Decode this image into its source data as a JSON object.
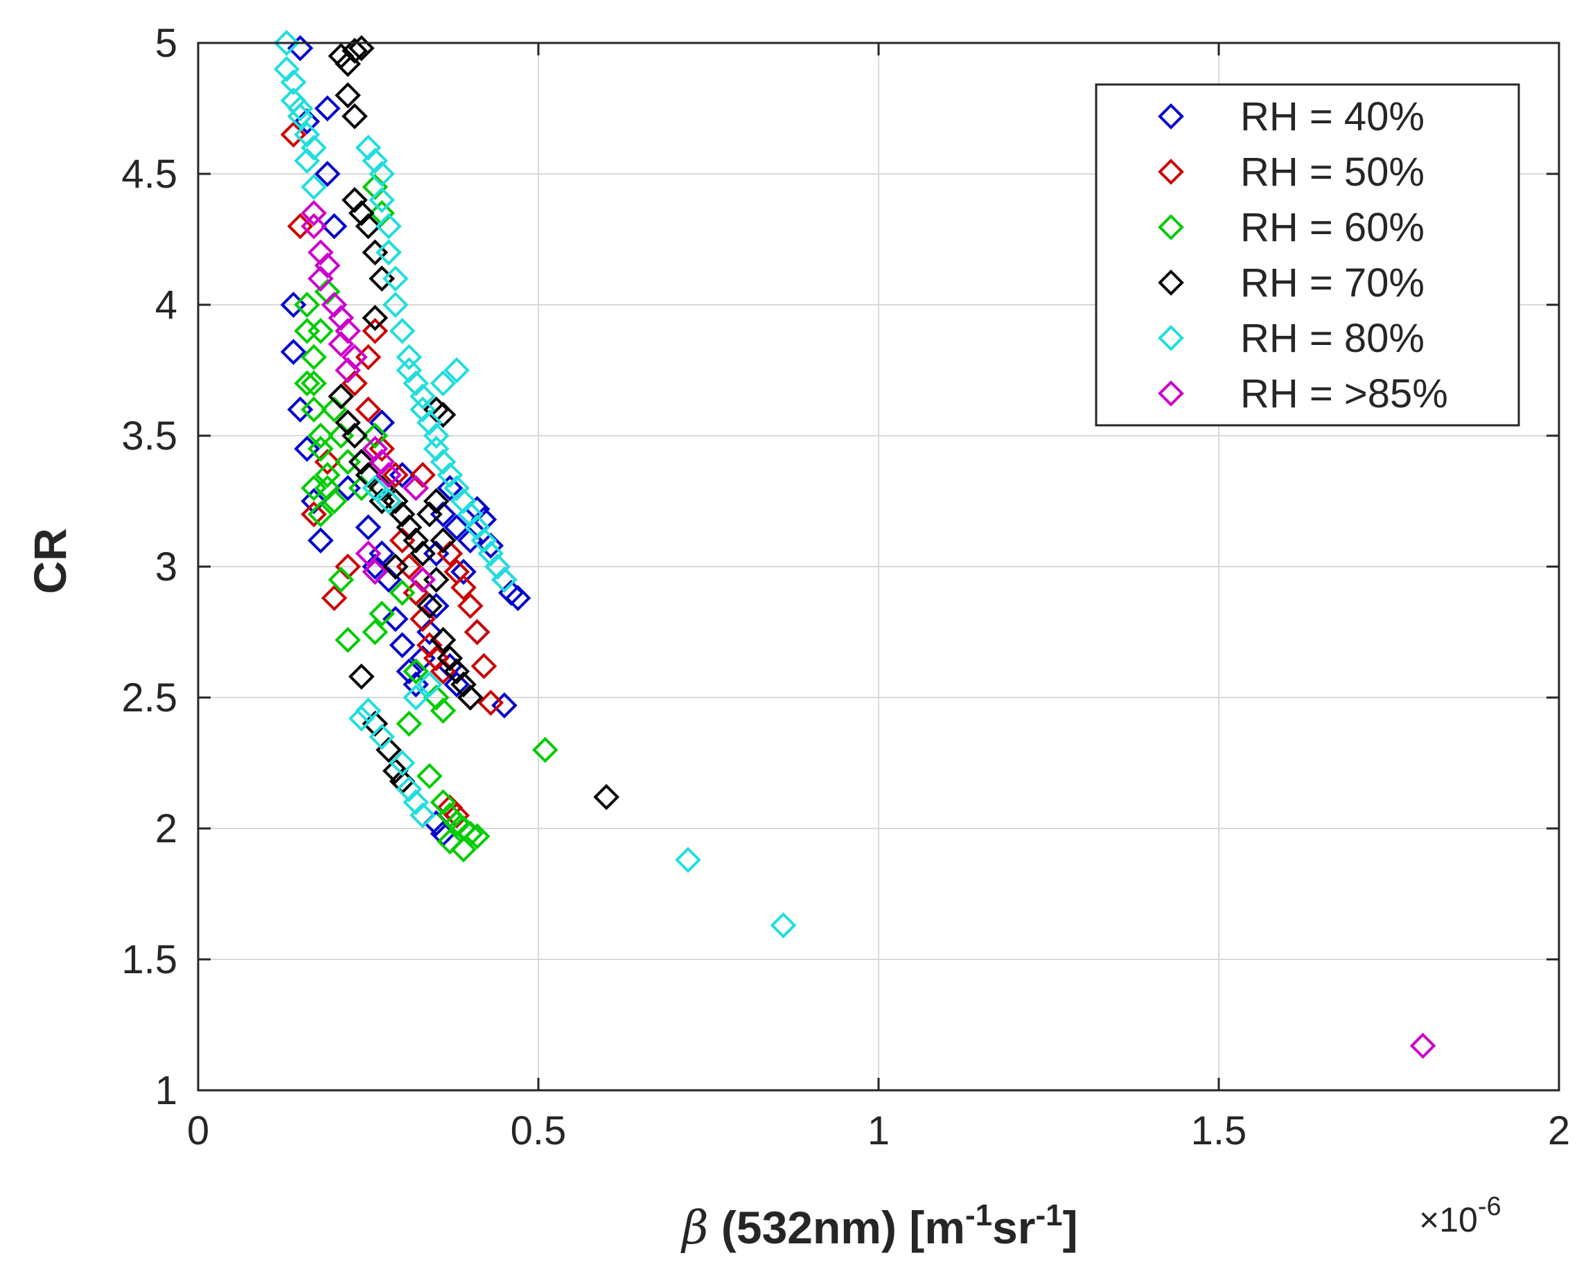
{
  "chart_data": {
    "type": "scatter",
    "title": "",
    "xlabel_symbol": "β",
    "xlabel_text": " (532nm) [m",
    "xlabel_sup1": "-1",
    "xlabel_mid": "sr",
    "xlabel_sup2": "-1",
    "xlabel_end": "]",
    "ylabel": "CR",
    "x_exponent_base": "×10",
    "x_exponent_power": "-6",
    "xlim": [
      0,
      2
    ],
    "ylim": [
      1,
      5
    ],
    "grid": true,
    "legend_position": "top-right",
    "x_ticks": [
      0,
      0.5,
      1,
      1.5,
      2
    ],
    "x_tick_labels": [
      "0",
      "0.5",
      "1",
      "1.5",
      "2"
    ],
    "y_ticks": [
      1,
      1.5,
      2,
      2.5,
      3,
      3.5,
      4,
      4.5,
      5
    ],
    "y_tick_labels": [
      "1",
      "1.5",
      "2",
      "2.5",
      "3",
      "3.5",
      "4",
      "4.5",
      "5"
    ],
    "marker": "diamond-open",
    "series": [
      {
        "name": "RH = 40%",
        "color": "#0000cc",
        "points": [
          [
            0.15,
            4.98
          ],
          [
            0.16,
            4.7
          ],
          [
            0.19,
            4.75
          ],
          [
            0.19,
            4.5
          ],
          [
            0.2,
            4.3
          ],
          [
            0.14,
            4.0
          ],
          [
            0.14,
            3.82
          ],
          [
            0.15,
            3.6
          ],
          [
            0.16,
            3.45
          ],
          [
            0.17,
            3.25
          ],
          [
            0.18,
            3.1
          ],
          [
            0.22,
            3.3
          ],
          [
            0.25,
            3.15
          ],
          [
            0.27,
            3.05
          ],
          [
            0.28,
            2.95
          ],
          [
            0.29,
            2.8
          ],
          [
            0.3,
            2.7
          ],
          [
            0.31,
            2.6
          ],
          [
            0.32,
            2.55
          ],
          [
            0.33,
            2.65
          ],
          [
            0.34,
            2.75
          ],
          [
            0.35,
            2.85
          ],
          [
            0.36,
            3.2
          ],
          [
            0.37,
            3.3
          ],
          [
            0.38,
            3.15
          ],
          [
            0.4,
            3.1
          ],
          [
            0.41,
            3.22
          ],
          [
            0.42,
            3.18
          ],
          [
            0.43,
            3.08
          ],
          [
            0.44,
            3.0
          ],
          [
            0.45,
            2.95
          ],
          [
            0.46,
            2.9
          ],
          [
            0.47,
            2.88
          ],
          [
            0.45,
            2.47
          ],
          [
            0.38,
            2.55
          ],
          [
            0.32,
            2.9
          ],
          [
            0.35,
            3.05
          ],
          [
            0.39,
            2.98
          ],
          [
            0.41,
            2.75
          ],
          [
            0.37,
            2.62
          ],
          [
            0.36,
            1.98
          ],
          [
            0.35,
            2.02
          ],
          [
            0.26,
            3.0
          ],
          [
            0.24,
            3.4
          ],
          [
            0.27,
            3.55
          ],
          [
            0.3,
            3.35
          ]
        ]
      },
      {
        "name": "RH = 50%",
        "color": "#cc0000",
        "points": [
          [
            0.14,
            4.65
          ],
          [
            0.15,
            4.3
          ],
          [
            0.2,
            2.88
          ],
          [
            0.22,
            3.0
          ],
          [
            0.23,
            3.7
          ],
          [
            0.25,
            3.6
          ],
          [
            0.27,
            3.45
          ],
          [
            0.29,
            3.35
          ],
          [
            0.3,
            3.1
          ],
          [
            0.31,
            3.0
          ],
          [
            0.32,
            2.9
          ],
          [
            0.33,
            2.8
          ],
          [
            0.34,
            2.7
          ],
          [
            0.35,
            2.65
          ],
          [
            0.36,
            2.6
          ],
          [
            0.37,
            3.05
          ],
          [
            0.38,
            2.98
          ],
          [
            0.39,
            2.92
          ],
          [
            0.4,
            2.85
          ],
          [
            0.41,
            2.75
          ],
          [
            0.42,
            2.62
          ],
          [
            0.43,
            2.48
          ],
          [
            0.4,
            2.5
          ],
          [
            0.37,
            2.08
          ],
          [
            0.38,
            2.05
          ],
          [
            0.33,
            3.35
          ],
          [
            0.28,
            3.25
          ],
          [
            0.26,
            3.9
          ],
          [
            0.25,
            3.8
          ],
          [
            0.19,
            3.4
          ],
          [
            0.17,
            3.2
          ]
        ]
      },
      {
        "name": "RH = 60%",
        "color": "#00cc00",
        "points": [
          [
            0.16,
            4.0
          ],
          [
            0.16,
            3.9
          ],
          [
            0.17,
            3.8
          ],
          [
            0.17,
            3.7
          ],
          [
            0.17,
            3.6
          ],
          [
            0.18,
            3.5
          ],
          [
            0.18,
            3.45
          ],
          [
            0.19,
            3.35
          ],
          [
            0.19,
            3.3
          ],
          [
            0.2,
            3.25
          ],
          [
            0.18,
            3.2
          ],
          [
            0.17,
            3.3
          ],
          [
            0.16,
            3.7
          ],
          [
            0.18,
            3.9
          ],
          [
            0.19,
            4.05
          ],
          [
            0.2,
            3.6
          ],
          [
            0.21,
            3.5
          ],
          [
            0.22,
            3.4
          ],
          [
            0.24,
            3.3
          ],
          [
            0.26,
            3.5
          ],
          [
            0.21,
            2.95
          ],
          [
            0.22,
            2.72
          ],
          [
            0.27,
            2.82
          ],
          [
            0.26,
            2.75
          ],
          [
            0.3,
            2.9
          ],
          [
            0.32,
            2.6
          ],
          [
            0.35,
            2.5
          ],
          [
            0.36,
            2.45
          ],
          [
            0.31,
            2.4
          ],
          [
            0.34,
            2.2
          ],
          [
            0.36,
            2.1
          ],
          [
            0.37,
            2.05
          ],
          [
            0.38,
            2.02
          ],
          [
            0.39,
            2.0
          ],
          [
            0.4,
            1.98
          ],
          [
            0.41,
            1.97
          ],
          [
            0.39,
            1.92
          ],
          [
            0.37,
            1.95
          ],
          [
            0.51,
            2.3
          ],
          [
            0.26,
            4.45
          ],
          [
            0.27,
            4.35
          ],
          [
            0.28,
            4.2
          ]
        ]
      },
      {
        "name": "RH = 70%",
        "color": "#000000",
        "points": [
          [
            0.21,
            4.95
          ],
          [
            0.23,
            4.97
          ],
          [
            0.24,
            4.98
          ],
          [
            0.22,
            4.92
          ],
          [
            0.22,
            4.8
          ],
          [
            0.23,
            4.72
          ],
          [
            0.23,
            4.4
          ],
          [
            0.24,
            4.35
          ],
          [
            0.25,
            4.3
          ],
          [
            0.26,
            4.2
          ],
          [
            0.27,
            4.1
          ],
          [
            0.26,
            3.95
          ],
          [
            0.21,
            3.65
          ],
          [
            0.22,
            3.55
          ],
          [
            0.23,
            3.5
          ],
          [
            0.24,
            3.4
          ],
          [
            0.25,
            3.35
          ],
          [
            0.27,
            3.3
          ],
          [
            0.29,
            3.25
          ],
          [
            0.3,
            3.2
          ],
          [
            0.31,
            3.15
          ],
          [
            0.32,
            3.1
          ],
          [
            0.33,
            3.05
          ],
          [
            0.34,
            3.2
          ],
          [
            0.35,
            3.25
          ],
          [
            0.36,
            3.1
          ],
          [
            0.35,
            2.95
          ],
          [
            0.33,
            2.95
          ],
          [
            0.34,
            2.85
          ],
          [
            0.36,
            2.72
          ],
          [
            0.37,
            2.65
          ],
          [
            0.38,
            2.6
          ],
          [
            0.39,
            2.55
          ],
          [
            0.4,
            2.5
          ],
          [
            0.24,
            2.58
          ],
          [
            0.26,
            2.4
          ],
          [
            0.28,
            2.3
          ],
          [
            0.29,
            2.22
          ],
          [
            0.3,
            2.18
          ],
          [
            0.29,
            3.0
          ],
          [
            0.6,
            2.12
          ],
          [
            0.35,
            3.6
          ],
          [
            0.36,
            3.58
          ],
          [
            0.27,
            3.25
          ]
        ]
      },
      {
        "name": "RH = 80%",
        "color": "#22dddd",
        "points": [
          [
            0.13,
            5.0
          ],
          [
            0.13,
            4.9
          ],
          [
            0.14,
            4.85
          ],
          [
            0.14,
            4.78
          ],
          [
            0.15,
            4.75
          ],
          [
            0.15,
            4.72
          ],
          [
            0.16,
            4.65
          ],
          [
            0.17,
            4.6
          ],
          [
            0.16,
            4.55
          ],
          [
            0.17,
            4.45
          ],
          [
            0.25,
            4.6
          ],
          [
            0.26,
            4.55
          ],
          [
            0.27,
            4.5
          ],
          [
            0.27,
            4.4
          ],
          [
            0.28,
            4.3
          ],
          [
            0.28,
            4.2
          ],
          [
            0.29,
            4.1
          ],
          [
            0.29,
            4.0
          ],
          [
            0.3,
            3.9
          ],
          [
            0.31,
            3.8
          ],
          [
            0.31,
            3.75
          ],
          [
            0.32,
            3.7
          ],
          [
            0.33,
            3.65
          ],
          [
            0.33,
            3.6
          ],
          [
            0.34,
            3.55
          ],
          [
            0.35,
            3.5
          ],
          [
            0.35,
            3.45
          ],
          [
            0.36,
            3.4
          ],
          [
            0.37,
            3.35
          ],
          [
            0.38,
            3.3
          ],
          [
            0.39,
            3.25
          ],
          [
            0.4,
            3.2
          ],
          [
            0.41,
            3.15
          ],
          [
            0.42,
            3.1
          ],
          [
            0.43,
            3.05
          ],
          [
            0.44,
            3.0
          ],
          [
            0.45,
            2.95
          ],
          [
            0.28,
            3.25
          ],
          [
            0.26,
            3.3
          ],
          [
            0.34,
            2.55
          ],
          [
            0.32,
            2.5
          ],
          [
            0.25,
            2.45
          ],
          [
            0.24,
            2.42
          ],
          [
            0.27,
            2.35
          ],
          [
            0.3,
            2.25
          ],
          [
            0.31,
            2.15
          ],
          [
            0.32,
            2.1
          ],
          [
            0.33,
            2.05
          ],
          [
            0.72,
            1.88
          ],
          [
            0.86,
            1.63
          ],
          [
            0.36,
            3.7
          ],
          [
            0.38,
            3.75
          ]
        ]
      },
      {
        "name": "RH = >85%",
        "color": "#cc00cc",
        "points": [
          [
            0.17,
            4.3
          ],
          [
            0.18,
            4.2
          ],
          [
            0.19,
            4.15
          ],
          [
            0.18,
            4.1
          ],
          [
            0.2,
            4.0
          ],
          [
            0.21,
            3.95
          ],
          [
            0.22,
            3.9
          ],
          [
            0.21,
            3.85
          ],
          [
            0.23,
            3.8
          ],
          [
            0.22,
            3.75
          ],
          [
            0.17,
            4.35
          ],
          [
            0.26,
            3.45
          ],
          [
            0.27,
            3.4
          ],
          [
            0.28,
            3.35
          ],
          [
            0.25,
            3.05
          ],
          [
            0.26,
            2.98
          ],
          [
            0.32,
            3.3
          ],
          [
            0.33,
            2.95
          ],
          [
            1.8,
            1.17
          ]
        ]
      }
    ]
  }
}
